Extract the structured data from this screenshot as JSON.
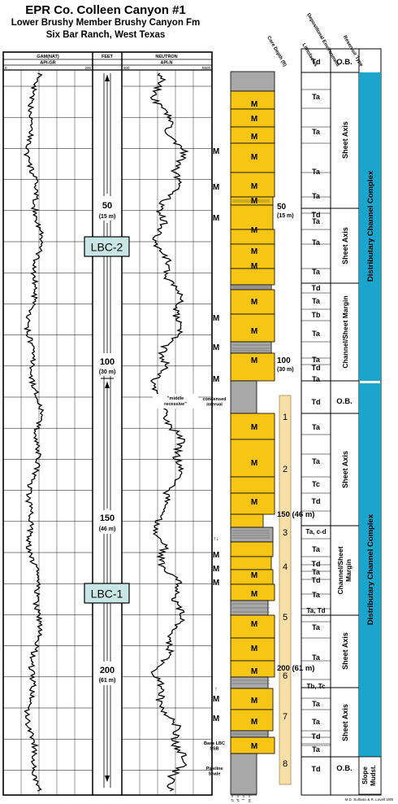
{
  "title": {
    "line1": "EPR Co. Colleen Canyon #1",
    "line2": "Lower Brushy Member Brushy Canyon Fm",
    "line3": "Six Bar Ranch, West Texas"
  },
  "log_headers": {
    "gam": "GAM(NAT)",
    "feet": "FEET",
    "neutron": "NEUTRON",
    "api_gr": "API-GR",
    "api_n": "API-N",
    "gr_min": "0",
    "gr_max": "200",
    "n_min": "500",
    "n_max": "5500"
  },
  "depth_marks": [
    {
      "ft": "50",
      "m": "(15 m)"
    },
    {
      "ft": "100",
      "m": "(30 m)"
    },
    {
      "ft": "150",
      "m": "(46 m)"
    },
    {
      "ft": "200",
      "m": "(61 m)"
    }
  ],
  "boxes": {
    "upper": "LBC-2",
    "lower": "LBC-1"
  },
  "middle_recessive": "\"middle recessive\"",
  "column_headers": [
    "Core Depth (ft)",
    "Lithofacies",
    "Depositional Environment",
    "Reservoir Type"
  ],
  "core_depths": [
    {
      "ft": "50",
      "m": "(15 m)"
    },
    {
      "ft": "100",
      "m": "(30 m)"
    },
    {
      "ft": "150 (46 m)",
      "m": ""
    },
    {
      "ft": "200 (61 m)",
      "m": ""
    }
  ],
  "m_marker": "M",
  "arrows_marker": "↑↓",
  "left_notes": {
    "condensed": "condensed interval",
    "base_lbc": "Base LBC SSB",
    "pipeline": "Pipeline Shale"
  },
  "bed_numbers": [
    "1",
    "2",
    "3",
    "4",
    "5",
    "6",
    "7",
    "8"
  ],
  "lithofacies": [
    "Td",
    "Ta",
    "Ta",
    "Ta",
    "Ta",
    "Td",
    "Ta",
    "Ta",
    "Ta",
    "Td",
    "Ta",
    "Tb",
    "Ta",
    "Ta",
    "Td",
    "Ta",
    "Td",
    "Ta",
    "Ta",
    "Tc",
    "Td",
    "Ta, c-d",
    "Ta",
    "Td",
    "Ta",
    "Td",
    "Ta",
    "Ta, Td",
    "Ta",
    "Ta",
    "Tb, Tc",
    "Ta",
    "Ta",
    "Td",
    "Ta",
    "Td"
  ],
  "environments": [
    "O.B.",
    "Sheet Axis",
    "Sheet Axis",
    "Channel/Sheet Margin",
    "O.B.",
    "Sheet Axis",
    "Channel/Sheet Margin",
    "Sheet Axis",
    "Sheet Axis",
    "O.B."
  ],
  "reservoir": {
    "upper": "Distributary Channel Complex",
    "lower": "Distributary Channel Complex",
    "slope": "Slope Mudst."
  },
  "grain_scale": [
    "cl",
    "vf",
    "f",
    "m"
  ],
  "credit": "M.D. Sullivan & R. Lovell 3/99",
  "colors": {
    "sand": "#F7C615",
    "reservoir": "#1BA5CC",
    "box": "#C8E6E6",
    "beige": "#F8DFA8"
  }
}
